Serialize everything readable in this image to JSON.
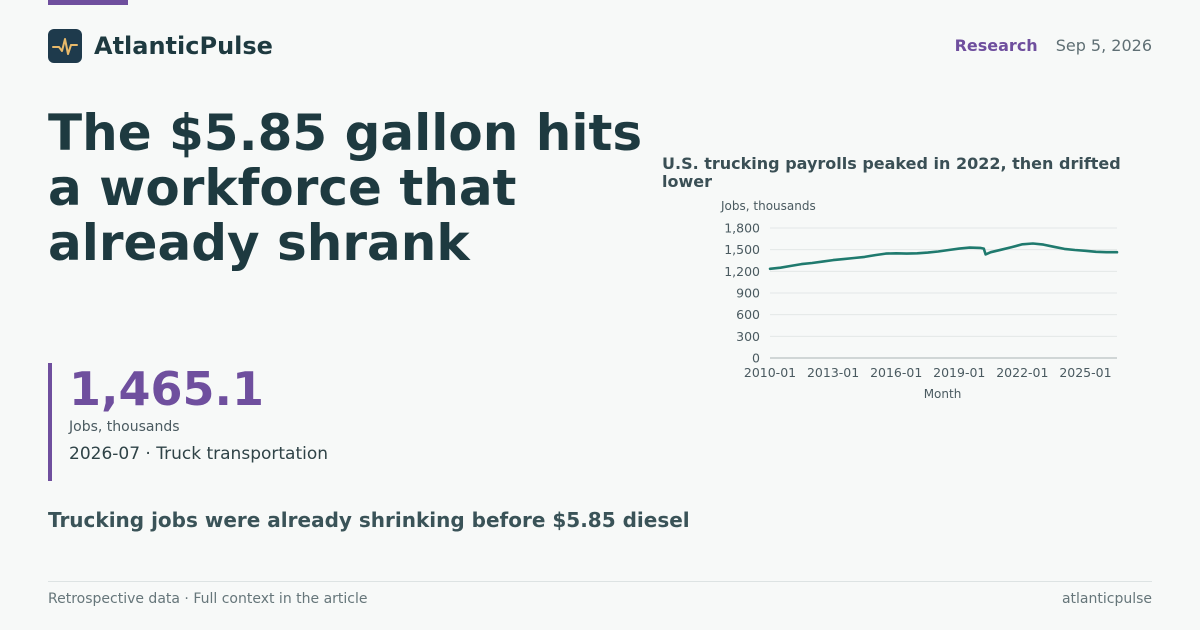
{
  "brand": {
    "name": "AtlanticPulse",
    "icon": "pulse-icon",
    "icon_color": "#e8b96a",
    "icon_bg": "#1e3a4c"
  },
  "header": {
    "category": "Research",
    "date": "Sep 5, 2026"
  },
  "headline": "The $5.85 gallon hits a workforce that already shrank",
  "stat": {
    "value": "1,465.1",
    "unit": "Jobs, thousands",
    "context": "2026-07 · Truck transportation"
  },
  "takeaway": "Trucking jobs were already shrinking before $5.85 diesel",
  "footer": {
    "note": "Retrospective data · Full context in the article",
    "site": "atlanticpulse"
  },
  "colors": {
    "accent": "#6f4f9e",
    "line": "#1f7a6e",
    "text": "#1e3a40"
  },
  "chart_data": {
    "type": "line",
    "title": "U.S. trucking payrolls peaked in 2022, then drifted lower",
    "ylabel": "Jobs, thousands",
    "xlabel": "Month",
    "ylim": [
      0,
      1800
    ],
    "yticks": [
      0,
      300,
      600,
      900,
      1200,
      1500,
      1800
    ],
    "ytick_labels": [
      "0",
      "300",
      "600",
      "900",
      "1,200",
      "1,500",
      "1,800"
    ],
    "xticks": [
      "2010-01",
      "2013-01",
      "2016-01",
      "2019-01",
      "2022-01",
      "2025-01"
    ],
    "xlim": [
      "2010-01",
      "2026-07"
    ],
    "grid": true,
    "series": [
      {
        "x": [
          "2010-01",
          "2010-07",
          "2011-01",
          "2011-07",
          "2012-01",
          "2012-07",
          "2013-01",
          "2013-07",
          "2014-01",
          "2014-07",
          "2015-01",
          "2015-07",
          "2016-01",
          "2016-07",
          "2017-01",
          "2017-07",
          "2018-01",
          "2018-07",
          "2019-01",
          "2019-07",
          "2020-01",
          "2020-03",
          "2020-04",
          "2020-07",
          "2021-01",
          "2021-07",
          "2022-01",
          "2022-07",
          "2023-01",
          "2023-07",
          "2024-01",
          "2024-07",
          "2025-01",
          "2025-07",
          "2026-01",
          "2026-07"
        ],
        "y": [
          1235,
          1250,
          1275,
          1300,
          1315,
          1335,
          1355,
          1370,
          1385,
          1400,
          1425,
          1445,
          1450,
          1445,
          1450,
          1460,
          1475,
          1495,
          1515,
          1528,
          1525,
          1515,
          1435,
          1465,
          1500,
          1535,
          1575,
          1585,
          1570,
          1540,
          1510,
          1495,
          1485,
          1470,
          1465,
          1465.1
        ]
      }
    ]
  }
}
